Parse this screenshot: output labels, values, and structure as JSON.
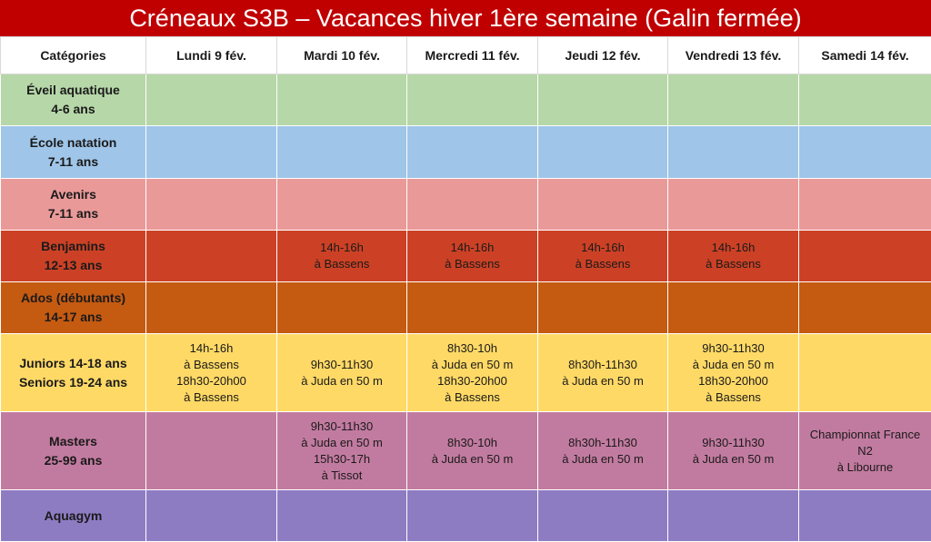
{
  "title": "Créneaux S3B – Vacances hiver 1ère semaine (Galin fermée)",
  "header": {
    "categories_label": "Catégories",
    "days": [
      "Lundi 9 fév.",
      "Mardi 10 fév.",
      "Mercredi 11 fév.",
      "Jeudi 12 fév.",
      "Vendredi 13 fév.",
      "Samedi 14 fév."
    ]
  },
  "rows": [
    {
      "color": "#b6d7a8",
      "category": [
        "Éveil aquatique",
        "4-6 ans"
      ],
      "cells": [
        [],
        [],
        [],
        [],
        [],
        []
      ]
    },
    {
      "color": "#9fc5e8",
      "category": [
        "École natation",
        "7-11 ans"
      ],
      "cells": [
        [],
        [],
        [],
        [],
        [],
        []
      ]
    },
    {
      "color": "#ea9999",
      "category": [
        "Avenirs",
        "7-11 ans"
      ],
      "cells": [
        [],
        [],
        [],
        [],
        [],
        []
      ]
    },
    {
      "color": "#cc4125",
      "category": [
        "Benjamins",
        "12-13 ans"
      ],
      "cells": [
        [],
        [
          "14h-16h",
          "à Bassens"
        ],
        [
          "14h-16h",
          "à Bassens"
        ],
        [
          "14h-16h",
          "à Bassens"
        ],
        [
          "14h-16h",
          "à Bassens"
        ],
        []
      ]
    },
    {
      "color": "#c55a11",
      "category": [
        "Ados (débutants)",
        "14-17 ans"
      ],
      "cells": [
        [],
        [],
        [],
        [],
        [],
        []
      ]
    },
    {
      "color": "#ffd966",
      "category": [
        "Juniors 14-18 ans",
        "Seniors 19-24 ans"
      ],
      "cells": [
        [
          "14h-16h",
          "à Bassens",
          "18h30-20h00",
          "à Bassens"
        ],
        [
          "9h30-11h30",
          "à Juda en 50 m"
        ],
        [
          "8h30-10h",
          "à Juda en 50 m",
          "18h30-20h00",
          "à Bassens"
        ],
        [
          "8h30h-11h30",
          "à Juda en 50 m"
        ],
        [
          "9h30-11h30",
          "à Juda en 50 m",
          "18h30-20h00",
          "à Bassens"
        ],
        []
      ]
    },
    {
      "color": "#c27ba0",
      "category": [
        "Masters",
        "25-99 ans"
      ],
      "cells": [
        [],
        [
          "9h30-11h30",
          "à Juda en 50 m",
          "15h30-17h",
          "à Tissot"
        ],
        [
          "8h30-10h",
          "à Juda en 50 m"
        ],
        [
          "8h30h-11h30",
          "à Juda en 50 m"
        ],
        [
          "9h30-11h30",
          "à Juda en 50 m"
        ],
        [
          "Championnat France",
          "N2",
          "à Libourne"
        ]
      ]
    },
    {
      "color": "#8e7cc3",
      "category": [
        "Aquagym"
      ],
      "cells": [
        [],
        [],
        [],
        [],
        [],
        []
      ]
    }
  ]
}
